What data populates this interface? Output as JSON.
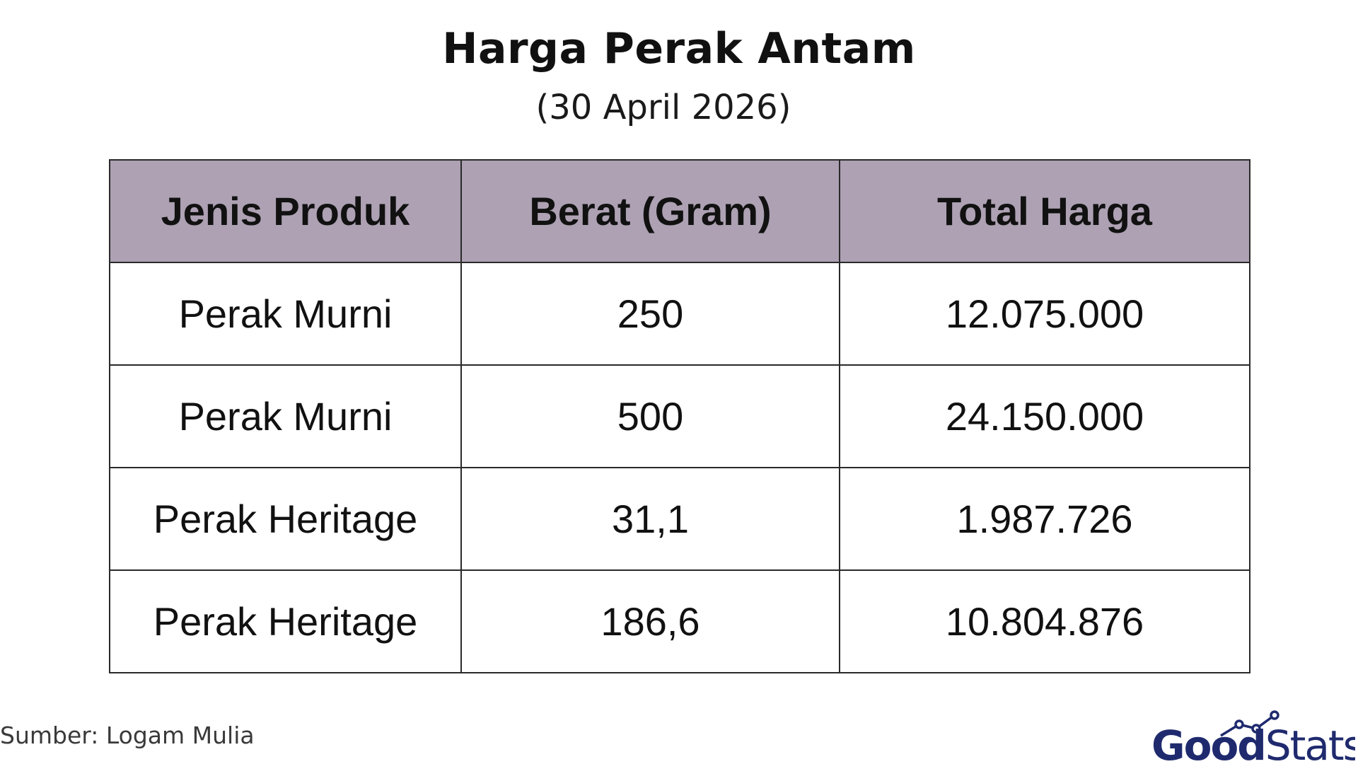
{
  "header": {
    "title": "Harga Perak Antam",
    "subtitle": "(30 April 2026)"
  },
  "table": {
    "columns": [
      "Jenis Produk",
      "Berat (Gram)",
      "Total Harga"
    ],
    "rows": [
      [
        "Perak Murni",
        "250",
        "12.075.000"
      ],
      [
        "Perak Murni",
        "500",
        "24.150.000"
      ],
      [
        "Perak Heritage",
        "31,1",
        "1.987.726"
      ],
      [
        "Perak Heritage",
        "186,6",
        "10.804.876"
      ]
    ]
  },
  "footer": {
    "source": "Sumber: Logam Mulia",
    "logo_part1": "Good",
    "logo_part2": "Stats"
  },
  "colors": {
    "header_bg": "#ada1b3",
    "logo_navy": "#1f2a6e"
  }
}
